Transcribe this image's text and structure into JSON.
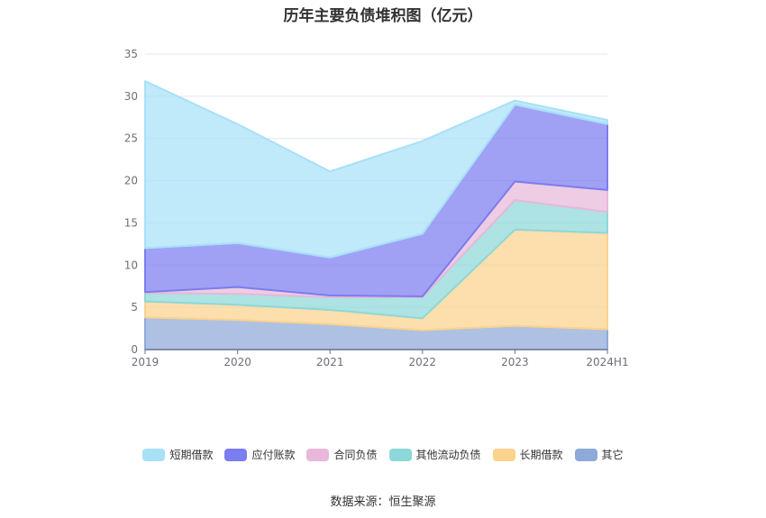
{
  "chart_data": {
    "type": "area",
    "stacked": true,
    "title": "历年主要负债堆积图（亿元）",
    "categories": [
      "2019",
      "2020",
      "2021",
      "2022",
      "2023",
      "2024H1"
    ],
    "ylim": [
      0,
      35
    ],
    "yticks": [
      0,
      5,
      10,
      15,
      20,
      25,
      30,
      35
    ],
    "grid": true,
    "legend_position": "bottom",
    "series": [
      {
        "name": "其它",
        "color": "#8fa9d8",
        "values": [
          3.8,
          3.5,
          3.0,
          2.3,
          2.8,
          2.4
        ]
      },
      {
        "name": "长期借款",
        "color": "#fbd38d",
        "values": [
          1.9,
          1.8,
          1.7,
          1.4,
          11.4,
          11.4
        ]
      },
      {
        "name": "其他流动负债",
        "color": "#8dd8d8",
        "values": [
          1.0,
          1.3,
          1.5,
          2.5,
          3.5,
          2.5
        ]
      },
      {
        "name": "合同负债",
        "color": "#e8b8da",
        "values": [
          0.1,
          0.8,
          0.2,
          0.1,
          2.2,
          2.6
        ]
      },
      {
        "name": "应付账款",
        "color": "#7b7df0",
        "values": [
          5.2,
          5.2,
          4.5,
          7.4,
          9.1,
          7.8
        ]
      },
      {
        "name": "短期借款",
        "color": "#a8e0f8",
        "values": [
          19.8,
          14.1,
          10.2,
          11.0,
          0.5,
          0.5
        ]
      }
    ]
  },
  "legend_order": [
    "短期借款",
    "应付账款",
    "合同负债",
    "其他流动负债",
    "长期借款",
    "其它"
  ],
  "source_text": "数据来源：恒生聚源"
}
